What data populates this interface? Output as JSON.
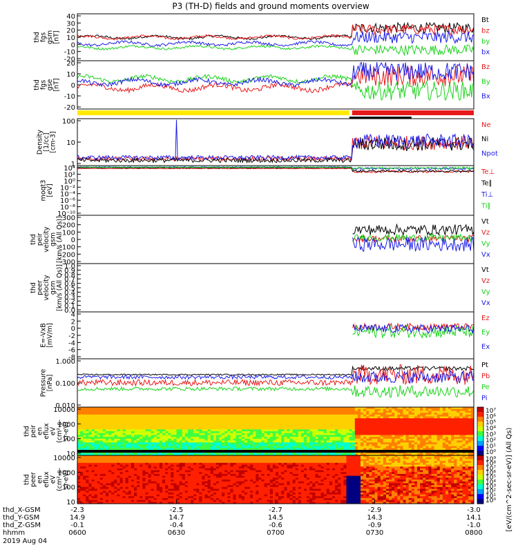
{
  "title": "P3 (TH-D) fields and ground moments overview",
  "colors": {
    "black": "#000000",
    "red": "#e8191b",
    "green": "#19d219",
    "blue": "#1a1ae6",
    "yellow": "#ffea00",
    "cyan": "#1aa3a8"
  },
  "chart_data": [
    {
      "type": "line",
      "ylabel": [
        "thd",
        "fgs",
        "gsm",
        "[nT]"
      ],
      "ylim": [
        -20,
        40
      ],
      "yticks": [
        "40",
        "30",
        "20",
        "10",
        "0",
        "-10",
        "-20"
      ],
      "legend": [
        {
          "label": "Bt",
          "color": "black"
        },
        {
          "label": "bz",
          "color": "red"
        },
        {
          "label": "by",
          "color": "green"
        },
        {
          "label": "bx",
          "color": "blue"
        }
      ],
      "series": [
        {
          "name": "Bt",
          "color": "black",
          "quiet": 10,
          "active": 22,
          "noise": 6
        },
        {
          "name": "bz",
          "color": "red",
          "quiet": 10,
          "active": 20,
          "noise": 6
        },
        {
          "name": "by",
          "color": "green",
          "quiet": -3,
          "active": -6,
          "noise": 6
        },
        {
          "name": "bx",
          "color": "blue",
          "quiet": 2,
          "active": 10,
          "noise": 7
        }
      ]
    },
    {
      "type": "line",
      "ylabel": [
        "thd",
        "fgs",
        "gse",
        "[nT]"
      ],
      "ylim": [
        -25,
        20
      ],
      "yticks": [
        "20",
        "10",
        "0",
        "-10",
        "-20"
      ],
      "legend": [
        {
          "label": "Bz",
          "color": "red"
        },
        {
          "label": "By",
          "color": "green"
        },
        {
          "label": "Bx",
          "color": "blue"
        }
      ],
      "series": [
        {
          "name": "Bz",
          "color": "red",
          "quiet": -5,
          "active": 6,
          "noise": 9
        },
        {
          "name": "By",
          "color": "green",
          "quiet": 3,
          "active": -8,
          "noise": 8
        },
        {
          "name": "Bx",
          "color": "blue",
          "quiet": 0,
          "active": 10,
          "noise": 8
        }
      ]
    },
    {
      "type": "line",
      "ylabel": [
        "Density",
        "[1/cc]",
        "[cm-3]"
      ],
      "yscale": "log",
      "ylim": [
        0.15,
        300
      ],
      "yticks": [
        "100",
        "10",
        "1"
      ],
      "legend": [
        {
          "label": "Ne",
          "color": "red"
        },
        {
          "label": "Ni",
          "color": "black"
        },
        {
          "label": "Npot",
          "color": "blue"
        }
      ],
      "series": [
        {
          "name": "Ne",
          "color": "red",
          "quiet": 0.45,
          "active": 6,
          "noise": 0.5
        },
        {
          "name": "Ni",
          "color": "black",
          "quiet": 0.35,
          "active": 5,
          "noise": 0.5
        },
        {
          "name": "Npot",
          "color": "blue",
          "quiet": 0.55,
          "active": 8,
          "noise": 0.5
        }
      ]
    },
    {
      "type": "line",
      "ylabel": [
        "moqt3",
        "[eV]"
      ],
      "yscale": "log",
      "ylim": [
        1e-10,
        10000.0
      ],
      "yticks": [
        "10⁴",
        "10²",
        "10⁰",
        "10⁻²",
        "10⁻⁴",
        "10⁻⁶",
        "10⁻⁸",
        "10⁻¹⁰"
      ],
      "legend": [
        {
          "label": "Te⊥",
          "color": "red"
        },
        {
          "label": "Te∥",
          "color": "black"
        },
        {
          "label": "Ti⊥",
          "color": "blue"
        },
        {
          "label": "Ti∥",
          "color": "green"
        }
      ],
      "series": [
        {
          "name": "Te⊥",
          "color": "red",
          "quiet": 1500,
          "active": 200,
          "noise": 0.3
        },
        {
          "name": "Te∥",
          "color": "black",
          "quiet": 2500,
          "active": 300,
          "noise": 0.3
        },
        {
          "name": "Ti⊥",
          "color": "blue",
          "quiet": 4000,
          "active": 1500,
          "noise": 0.3
        },
        {
          "name": "Ti∥",
          "color": "green",
          "quiet": 3500,
          "active": 2000,
          "noise": 0.3
        }
      ]
    },
    {
      "type": "line",
      "ylabel": [
        "thd",
        "peir",
        "velocity",
        "gsm",
        "[km/s (All Qs)]"
      ],
      "ylim": [
        -300,
        300
      ],
      "yticks": [
        "300",
        "200",
        "100",
        "0",
        "-100",
        "-200",
        "-300"
      ],
      "legend": [
        {
          "label": "Vt",
          "color": "black"
        },
        {
          "label": "Vz",
          "color": "red"
        },
        {
          "label": "Vy",
          "color": "green"
        },
        {
          "label": "Vx",
          "color": "blue"
        }
      ],
      "series": [
        {
          "name": "Vt",
          "color": "black",
          "active": 120,
          "noise": 60
        },
        {
          "name": "Vz",
          "color": "red",
          "active": 10,
          "noise": 40
        },
        {
          "name": "Vy",
          "color": "green",
          "active": 20,
          "noise": 40
        },
        {
          "name": "Vx",
          "color": "blue",
          "active": -60,
          "noise": 80
        }
      ]
    },
    {
      "type": "line",
      "ylabel": [
        "thd",
        "peer",
        "velocity",
        "gsm",
        "[km/s (All Qs)]"
      ],
      "ylim": [
        0,
        1
      ],
      "yticks": [
        "1.0",
        "0.9",
        "0.8",
        "0.7",
        "0.6",
        "0.5",
        "0.4",
        "0.3",
        "0.2",
        "0.1",
        "0.0"
      ],
      "legend": [
        {
          "label": "Vt",
          "color": "black"
        },
        {
          "label": "Vz",
          "color": "red"
        },
        {
          "label": "Vy",
          "color": "green"
        },
        {
          "label": "Vx",
          "color": "blue"
        }
      ],
      "series": []
    },
    {
      "type": "line",
      "ylabel": [
        "E=-VxB",
        "[mV/m]"
      ],
      "ylim": [
        -8,
        4
      ],
      "yticks": [
        "4",
        "2",
        "0",
        "-2",
        "-4",
        "-6",
        "-8"
      ],
      "legend": [
        {
          "label": "Ez",
          "color": "red"
        },
        {
          "label": "Ey",
          "color": "green"
        },
        {
          "label": "Ex",
          "color": "blue"
        }
      ],
      "series": [
        {
          "name": "Ez",
          "color": "red",
          "active": 0.2,
          "noise": 0.8
        },
        {
          "name": "Ey",
          "color": "green",
          "active": -1,
          "noise": 1.5
        },
        {
          "name": "Ex",
          "color": "blue",
          "active": -0.3,
          "noise": 1
        }
      ]
    },
    {
      "type": "line",
      "ylabel": [
        "Pressure",
        "[nPa]"
      ],
      "yscale": "log",
      "ylim": [
        0.005,
        1.2
      ],
      "yticks": [
        "1.000",
        "0.100",
        "0.010"
      ],
      "legend": [
        {
          "label": "Pt",
          "color": "black"
        },
        {
          "label": "Pb",
          "color": "red"
        },
        {
          "label": "Pe",
          "color": "green"
        },
        {
          "label": "Pi",
          "color": "blue"
        }
      ],
      "series": [
        {
          "name": "Pt",
          "color": "black",
          "quiet": 0.2,
          "active": 0.4,
          "noise": 0.1
        },
        {
          "name": "Pb",
          "color": "red",
          "quiet": 0.08,
          "active": 0.2,
          "noise": 0.5
        },
        {
          "name": "Pe",
          "color": "green",
          "quiet": 0.04,
          "active": 0.03,
          "noise": 0.3
        },
        {
          "name": "Pi",
          "color": "blue",
          "quiet": 0.15,
          "active": 0.15,
          "noise": 0.3
        }
      ]
    },
    {
      "type": "heatmap",
      "ylabel": [
        "thd",
        "peir",
        "en",
        "eflux",
        "eV",
        "(cm²-s-",
        "sr-eV)"
      ],
      "yscale": "log",
      "ylim": [
        5,
        30000
      ],
      "yticks": [
        "10000",
        "1000",
        "100",
        "10"
      ],
      "colorbar": {
        "ticks": [
          "10⁷",
          "10⁶",
          "10⁵",
          "10⁴",
          "10³",
          "10²",
          "10¹",
          "10⁰"
        ]
      }
    },
    {
      "type": "heatmap",
      "ylabel": [
        "thd",
        "peer",
        "en",
        "eflux",
        "eV",
        "(cm²-s-",
        "sr-eV)"
      ],
      "yscale": "log",
      "ylim": [
        5,
        30000
      ],
      "yticks": [
        "10000",
        "1000",
        "100",
        "10"
      ],
      "colorbar": {
        "ticks": [
          "10⁹",
          "10⁸",
          "10⁷",
          "10⁶",
          "10⁵",
          "10⁴",
          "10³",
          "10²",
          "10¹",
          "10⁰"
        ]
      }
    }
  ],
  "colorbar_label": "[eV/(cm^2-sec-sr-eV)] (All Qs)",
  "time_axis": {
    "labels": [
      "0600",
      "0630",
      "0700",
      "0730",
      "0800"
    ],
    "rows": [
      {
        "name": "thd_X-GSM",
        "values": [
          "-2.3",
          "-2.5",
          "-2.7",
          "-2.9",
          "-3.0"
        ]
      },
      {
        "name": "thd_Y-GSM",
        "values": [
          "14.9",
          "14.7",
          "14.5",
          "14.3",
          "14.1"
        ]
      },
      {
        "name": "thd_Z-GSM",
        "values": [
          "-0.1",
          "-0.4",
          "-0.6",
          "-0.9",
          "-1.0"
        ]
      },
      {
        "name": "hhmm",
        "values": [
          "0600",
          "0630",
          "0700",
          "0730",
          "0800"
        ]
      }
    ],
    "date": "2019 Aug 04"
  }
}
